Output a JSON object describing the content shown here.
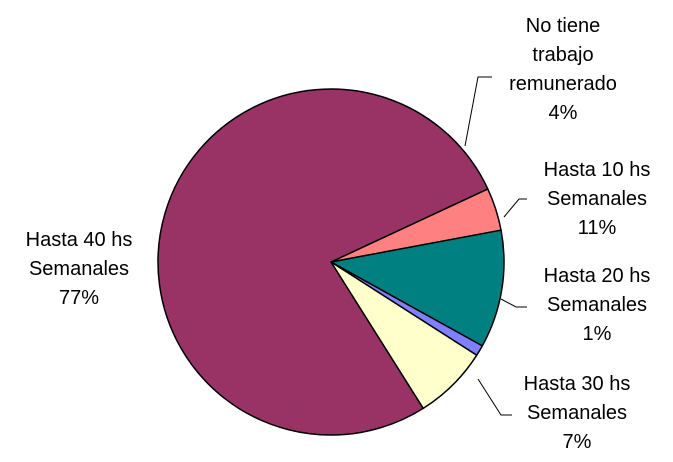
{
  "chart_data": {
    "type": "pie",
    "title": "",
    "slices": [
      {
        "label_lines": [
          "No tiene",
          "trabajo",
          "remunerado"
        ],
        "percent_label": "4%",
        "value": 4,
        "color": "#FF8080"
      },
      {
        "label_lines": [
          "Hasta 10 hs",
          "Semanales"
        ],
        "percent_label": "11%",
        "value": 11,
        "color": "#008080"
      },
      {
        "label_lines": [
          "Hasta 20 hs",
          "Semanales"
        ],
        "percent_label": "1%",
        "value": 1,
        "color": "#8080FF"
      },
      {
        "label_lines": [
          "Hasta 30 hs",
          "Semanales"
        ],
        "percent_label": "7%",
        "value": 7,
        "color": "#FFFFCC"
      },
      {
        "label_lines": [
          "Hasta 40 hs",
          "Semanales"
        ],
        "percent_label": "77%",
        "value": 77,
        "color": "#993366"
      }
    ],
    "legend": "none",
    "start_angle_deg": 25
  }
}
